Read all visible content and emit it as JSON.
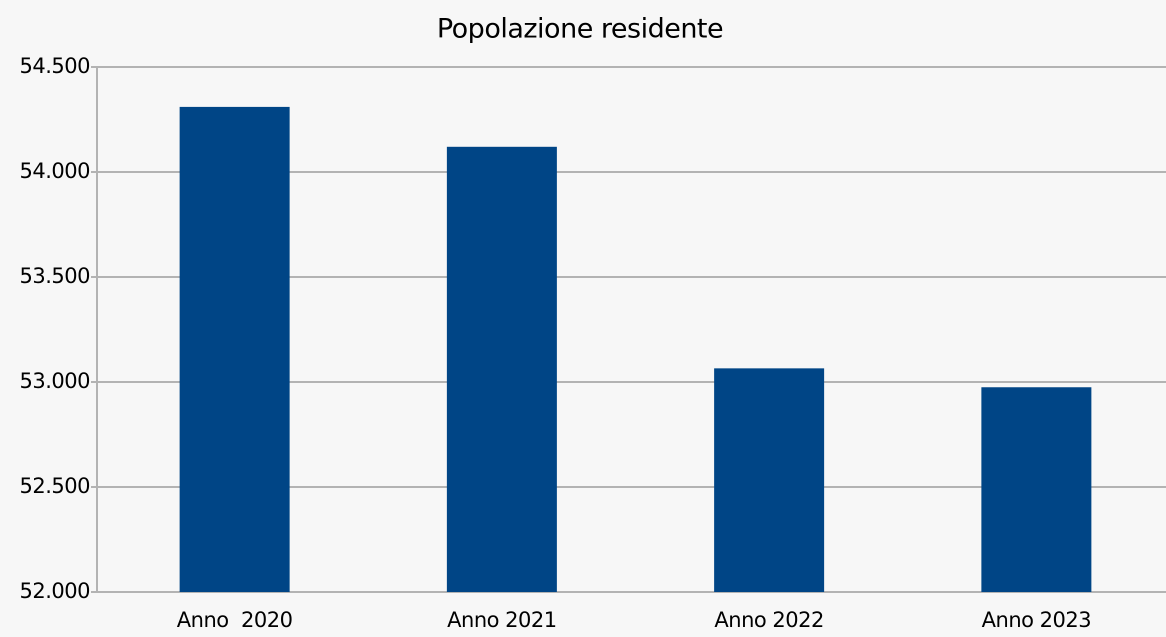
{
  "chart_data": {
    "type": "bar",
    "title": "Popolazione residente",
    "categories": [
      "Anno  2020",
      "Anno 2021",
      "Anno 2022",
      "Anno 2023"
    ],
    "values": [
      54310,
      54120,
      53065,
      52975
    ],
    "color": "#004586",
    "ylim": [
      52000,
      54500
    ],
    "yticks": [
      {
        "value": 52000,
        "label": "52.000"
      },
      {
        "value": 52500,
        "label": "52.500"
      },
      {
        "value": 53000,
        "label": "53.000"
      },
      {
        "value": 53500,
        "label": "53.500"
      },
      {
        "value": 54000,
        "label": "54.000"
      },
      {
        "value": 54500,
        "label": "54.500"
      }
    ],
    "grid": true
  }
}
